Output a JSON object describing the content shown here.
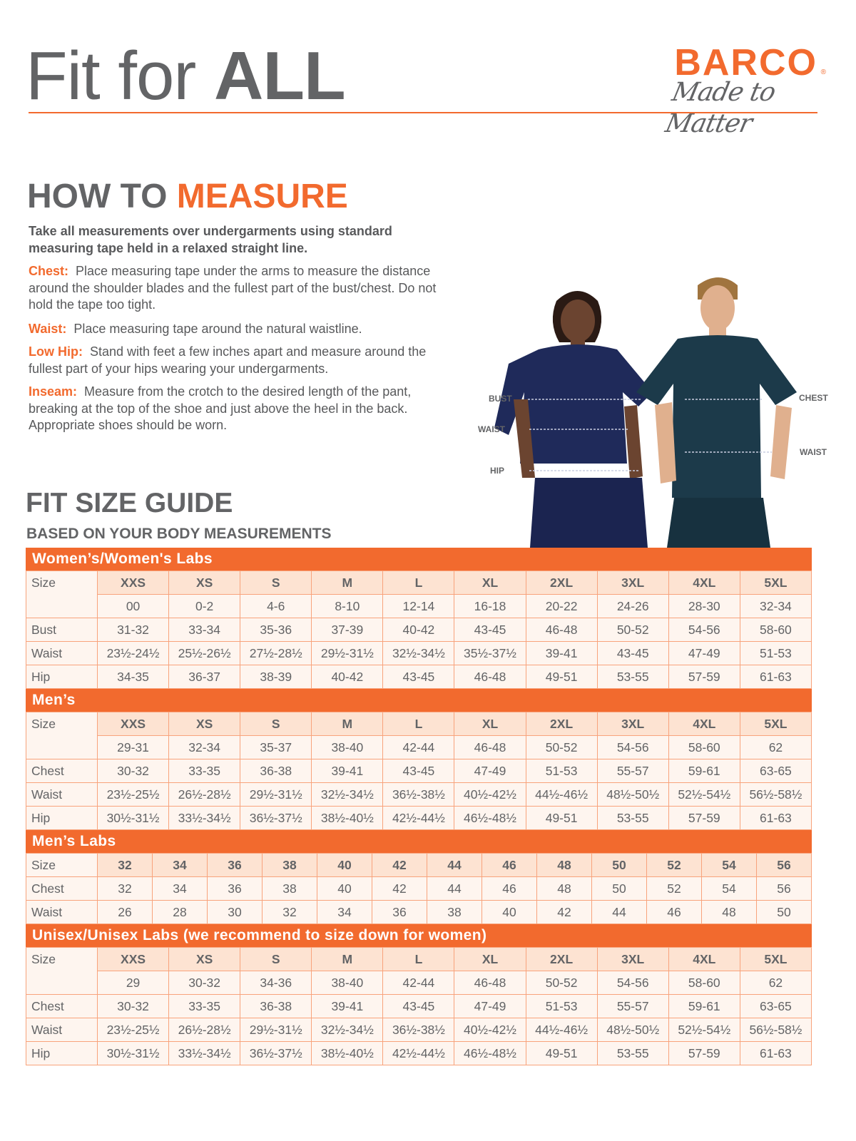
{
  "header": {
    "title_part1": "Fit for ",
    "title_part2": "ALL"
  },
  "logo": {
    "brand": "BARCO",
    "registered": "®",
    "tagline": "Made to Matter"
  },
  "colors": {
    "accent": "#f26a2e",
    "text": "#636466",
    "size_header_bg": "#fde3d2",
    "cell_bg": "#fef5ef"
  },
  "how_to_measure": {
    "title_part1": "HOW TO ",
    "title_part2": "MEASURE",
    "intro": "Take all measurements over undergarments using standard measuring tape held in a relaxed straight line.",
    "items": [
      {
        "label": "Chest:",
        "text": "Place measuring tape under the arms to measure the distance around the shoulder blades and the fullest part of the bust/chest. Do not hold the tape too tight."
      },
      {
        "label": "Waist:",
        "text": "Place measuring tape around the natural waistline."
      },
      {
        "label": "Low Hip:",
        "text": "Stand with feet a few inches apart and measure around the fullest part of your hips wearing your undergarments."
      },
      {
        "label": "Inseam:",
        "text": "Measure from the crotch to the desired length of the pant, breaking at the top of the shoe and just above the heel in the back. Appropriate shoes should be worn."
      }
    ]
  },
  "figure_labels": {
    "woman": [
      "BUST",
      "WAIST",
      "HIP"
    ],
    "man": [
      "CHEST",
      "WAIST"
    ]
  },
  "size_guide": {
    "title": "FIT SIZE GUIDE",
    "subtitle": "BASED ON YOUR BODY MEASUREMENTS",
    "sections": [
      {
        "title": "Women’s/Women's Labs",
        "size_label": "Size",
        "sizes": [
          "XXS",
          "XS",
          "S",
          "M",
          "L",
          "XL",
          "2XL",
          "3XL",
          "4XL",
          "5XL"
        ],
        "numeric_sizes": [
          "00",
          "0-2",
          "4-6",
          "8-10",
          "12-14",
          "16-18",
          "20-22",
          "24-26",
          "28-30",
          "32-34"
        ],
        "rows": [
          {
            "label": "Bust",
            "values": [
              "31-32",
              "33-34",
              "35-36",
              "37-39",
              "40-42",
              "43-45",
              "46-48",
              "50-52",
              "54-56",
              "58-60"
            ]
          },
          {
            "label": "Waist",
            "values": [
              "23½-24½",
              "25½-26½",
              "27½-28½",
              "29½-31½",
              "32½-34½",
              "35½-37½",
              "39-41",
              "43-45",
              "47-49",
              "51-53"
            ]
          },
          {
            "label": "Hip",
            "values": [
              "34-35",
              "36-37",
              "38-39",
              "40-42",
              "43-45",
              "46-48",
              "49-51",
              "53-55",
              "57-59",
              "61-63"
            ]
          }
        ]
      },
      {
        "title": "Men’s",
        "size_label": "Size",
        "sizes": [
          "XXS",
          "XS",
          "S",
          "M",
          "L",
          "XL",
          "2XL",
          "3XL",
          "4XL",
          "5XL"
        ],
        "numeric_sizes": [
          "29-31",
          "32-34",
          "35-37",
          "38-40",
          "42-44",
          "46-48",
          "50-52",
          "54-56",
          "58-60",
          "62"
        ],
        "rows": [
          {
            "label": "Chest",
            "values": [
              "30-32",
              "33-35",
              "36-38",
              "39-41",
              "43-45",
              "47-49",
              "51-53",
              "55-57",
              "59-61",
              "63-65"
            ]
          },
          {
            "label": "Waist",
            "values": [
              "23½-25½",
              "26½-28½",
              "29½-31½",
              "32½-34½",
              "36½-38½",
              "40½-42½",
              "44½-46½",
              "48½-50½",
              "52½-54½",
              "56½-58½"
            ]
          },
          {
            "label": "Hip",
            "values": [
              "30½-31½",
              "33½-34½",
              "36½-37½",
              "38½-40½",
              "42½-44½",
              "46½-48½",
              "49-51",
              "53-55",
              "57-59",
              "61-63"
            ]
          }
        ]
      },
      {
        "title": "Men’s Labs",
        "size_label": "Size",
        "sizes": [
          "32",
          "34",
          "36",
          "38",
          "40",
          "42",
          "44",
          "46",
          "48",
          "50",
          "52",
          "54",
          "56"
        ],
        "rows": [
          {
            "label": "Chest",
            "values": [
              "32",
              "34",
              "36",
              "38",
              "40",
              "42",
              "44",
              "46",
              "48",
              "50",
              "52",
              "54",
              "56"
            ]
          },
          {
            "label": "Waist",
            "values": [
              "26",
              "28",
              "30",
              "32",
              "34",
              "36",
              "38",
              "40",
              "42",
              "44",
              "46",
              "48",
              "50"
            ]
          }
        ]
      },
      {
        "title": "Unisex/Unisex Labs (we recommend to size down for women)",
        "size_label": "Size",
        "sizes": [
          "XXS",
          "XS",
          "S",
          "M",
          "L",
          "XL",
          "2XL",
          "3XL",
          "4XL",
          "5XL"
        ],
        "numeric_sizes": [
          "29",
          "30-32",
          "34-36",
          "38-40",
          "42-44",
          "46-48",
          "50-52",
          "54-56",
          "58-60",
          "62"
        ],
        "rows": [
          {
            "label": "Chest",
            "values": [
              "30-32",
              "33-35",
              "36-38",
              "39-41",
              "43-45",
              "47-49",
              "51-53",
              "55-57",
              "59-61",
              "63-65"
            ]
          },
          {
            "label": "Waist",
            "values": [
              "23½-25½",
              "26½-28½",
              "29½-31½",
              "32½-34½",
              "36½-38½",
              "40½-42½",
              "44½-46½",
              "48½-50½",
              "52½-54½",
              "56½-58½"
            ]
          },
          {
            "label": "Hip",
            "values": [
              "30½-31½",
              "33½-34½",
              "36½-37½",
              "38½-40½",
              "42½-44½",
              "46½-48½",
              "49-51",
              "53-55",
              "57-59",
              "61-63"
            ]
          }
        ]
      }
    ]
  }
}
